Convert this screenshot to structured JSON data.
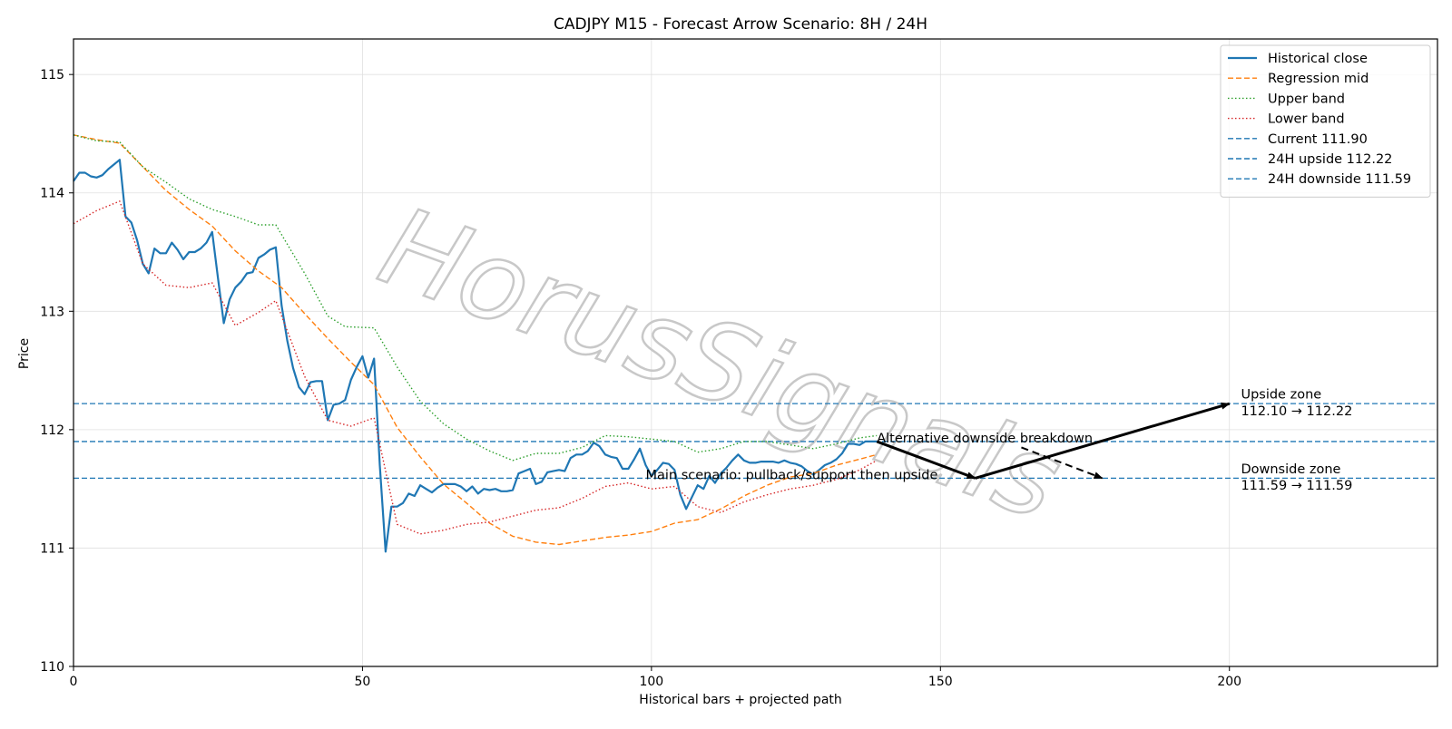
{
  "chart_data": {
    "type": "line",
    "title": "CADJPY M15 - Forecast Arrow Scenario: 8H / 24H",
    "xlabel": "Historical bars + projected path",
    "ylabel": "Price",
    "xlim": [
      0,
      236
    ],
    "ylim": [
      110,
      115.3
    ],
    "xticks": [
      0,
      50,
      100,
      150,
      200
    ],
    "yticks": [
      110,
      111,
      112,
      113,
      114,
      115
    ],
    "grid": true,
    "legend_position": "top-right",
    "watermark": "HorusSignals",
    "series": [
      {
        "name": "Historical close",
        "color": "#1f77b4",
        "style": "solid",
        "x": [
          0,
          1,
          2,
          3,
          4,
          5,
          6,
          7,
          8,
          9,
          10,
          11,
          12,
          13,
          14,
          15,
          16,
          17,
          18,
          19,
          20,
          21,
          22,
          23,
          24,
          25,
          26,
          27,
          28,
          29,
          30,
          31,
          32,
          33,
          34,
          35,
          36,
          37,
          38,
          39,
          40,
          41,
          42,
          43,
          44,
          45,
          46,
          47,
          48,
          49,
          50,
          51,
          52,
          53,
          54,
          55,
          56,
          57,
          58,
          59,
          60,
          61,
          62,
          63,
          64,
          65,
          66,
          67,
          68,
          69,
          70,
          71,
          72,
          73,
          74,
          75,
          76,
          77,
          78,
          79,
          80,
          81,
          82,
          83,
          84,
          85,
          86,
          87,
          88,
          89,
          90,
          91,
          92,
          93,
          94,
          95,
          96,
          97,
          98,
          99,
          100,
          101,
          102,
          103,
          104,
          105,
          106,
          107,
          108,
          109,
          110,
          111,
          112,
          113,
          114,
          115,
          116,
          117,
          118,
          119,
          120,
          121,
          122,
          123,
          124,
          125,
          126,
          127,
          128,
          129,
          130,
          131,
          132,
          133,
          134,
          135,
          136,
          137,
          138,
          139
        ],
        "y": [
          114.1,
          114.17,
          114.17,
          114.14,
          114.13,
          114.15,
          114.2,
          114.24,
          114.28,
          113.8,
          113.75,
          113.6,
          113.4,
          113.32,
          113.53,
          113.49,
          113.49,
          113.58,
          113.52,
          113.44,
          113.5,
          113.5,
          113.53,
          113.58,
          113.67,
          113.28,
          112.9,
          113.1,
          113.2,
          113.25,
          113.32,
          113.33,
          113.45,
          113.48,
          113.52,
          113.54,
          113.05,
          112.75,
          112.52,
          112.36,
          112.3,
          112.4,
          112.41,
          112.41,
          112.08,
          112.21,
          112.22,
          112.25,
          112.42,
          112.53,
          112.62,
          112.44,
          112.6,
          111.7,
          110.97,
          111.35,
          111.35,
          111.38,
          111.46,
          111.44,
          111.53,
          111.5,
          111.47,
          111.51,
          111.54,
          111.54,
          111.54,
          111.52,
          111.48,
          111.52,
          111.46,
          111.5,
          111.49,
          111.5,
          111.48,
          111.48,
          111.49,
          111.63,
          111.65,
          111.67,
          111.54,
          111.56,
          111.64,
          111.65,
          111.66,
          111.65,
          111.76,
          111.79,
          111.79,
          111.82,
          111.89,
          111.86,
          111.79,
          111.77,
          111.76,
          111.67,
          111.67,
          111.75,
          111.84,
          111.7,
          111.61,
          111.66,
          111.72,
          111.71,
          111.66,
          111.45,
          111.33,
          111.43,
          111.53,
          111.5,
          111.61,
          111.55,
          111.63,
          111.68,
          111.74,
          111.79,
          111.74,
          111.72,
          111.72,
          111.73,
          111.73,
          111.73,
          111.72,
          111.74,
          111.72,
          111.71,
          111.69,
          111.65,
          111.62,
          111.66,
          111.7,
          111.72,
          111.75,
          111.8,
          111.88,
          111.88,
          111.87,
          111.9,
          111.9,
          111.9
        ]
      },
      {
        "name": "Regression mid",
        "color": "#ff7f0e",
        "style": "dashed",
        "x": [
          0,
          4,
          8,
          12,
          16,
          20,
          24,
          28,
          32,
          36,
          40,
          44,
          48,
          52,
          56,
          60,
          64,
          68,
          72,
          76,
          80,
          84,
          88,
          92,
          96,
          100,
          104,
          108,
          112,
          116,
          120,
          124,
          128,
          132,
          136,
          139
        ],
        "y": [
          114.49,
          114.45,
          114.42,
          114.22,
          114.02,
          113.86,
          113.72,
          113.51,
          113.34,
          113.2,
          112.98,
          112.77,
          112.57,
          112.38,
          112.02,
          111.77,
          111.54,
          111.38,
          111.21,
          111.1,
          111.05,
          111.03,
          111.06,
          111.09,
          111.11,
          111.14,
          111.21,
          111.24,
          111.33,
          111.44,
          111.53,
          111.6,
          111.63,
          111.7,
          111.75,
          111.79
        ]
      },
      {
        "name": "Upper band",
        "color": "#2ca02c",
        "style": "dotted",
        "x": [
          0,
          4,
          8,
          12,
          16,
          20,
          24,
          28,
          32,
          35,
          40,
          44,
          47,
          52,
          56,
          60,
          64,
          68,
          72,
          76,
          80,
          84,
          88,
          92,
          96,
          100,
          104,
          108,
          112,
          116,
          120,
          124,
          128,
          132,
          136,
          139
        ],
        "y": [
          114.49,
          114.44,
          114.43,
          114.22,
          114.09,
          113.95,
          113.86,
          113.8,
          113.73,
          113.73,
          113.32,
          112.96,
          112.87,
          112.86,
          112.53,
          112.24,
          112.05,
          111.92,
          111.82,
          111.74,
          111.8,
          111.8,
          111.85,
          111.95,
          111.94,
          111.92,
          111.9,
          111.81,
          111.84,
          111.9,
          111.9,
          111.87,
          111.84,
          111.88,
          111.93,
          111.95
        ]
      },
      {
        "name": "Lower band",
        "color": "#d62728",
        "style": "dotted",
        "x": [
          0,
          4,
          8,
          12,
          16,
          20,
          24,
          28,
          32,
          35,
          40,
          44,
          48,
          52,
          56,
          60,
          64,
          68,
          72,
          76,
          80,
          84,
          88,
          92,
          96,
          100,
          104,
          108,
          112,
          116,
          120,
          124,
          128,
          132,
          136,
          139
        ],
        "y": [
          113.74,
          113.85,
          113.93,
          113.4,
          113.22,
          113.2,
          113.24,
          112.88,
          112.99,
          113.09,
          112.45,
          112.08,
          112.03,
          112.1,
          111.2,
          111.12,
          111.15,
          111.2,
          111.22,
          111.27,
          111.32,
          111.34,
          111.42,
          111.52,
          111.55,
          111.5,
          111.52,
          111.35,
          111.3,
          111.39,
          111.45,
          111.5,
          111.53,
          111.58,
          111.66,
          111.74
        ]
      }
    ],
    "hlines": [
      {
        "name": "Current 111.90",
        "y": 111.9,
        "color": "#1f77b4",
        "style": "dashed"
      },
      {
        "name": "24H upside 112.22",
        "y": 112.22,
        "color": "#1f77b4",
        "style": "dashed"
      },
      {
        "name": "24H downside 111.59",
        "y": 111.59,
        "color": "#1f77b4",
        "style": "dashed"
      }
    ],
    "arrows": [
      {
        "kind": "main",
        "style": "solid",
        "from": [
          139,
          111.9
        ],
        "to": [
          156,
          111.59
        ]
      },
      {
        "kind": "main",
        "style": "solid",
        "from": [
          156,
          111.59
        ],
        "to": [
          200,
          112.22
        ]
      },
      {
        "kind": "alternative",
        "style": "dashed",
        "from": [
          164,
          111.85
        ],
        "to": [
          178,
          111.59
        ]
      }
    ],
    "annotations": [
      {
        "text": "Alternative downside breakdown",
        "x": 139,
        "y": 111.93
      },
      {
        "text": "Main scenario: pullback/support then upside",
        "x": 99,
        "y": 111.62
      },
      {
        "text": "Upside zone",
        "x": 202,
        "y": 112.3
      },
      {
        "text": "112.10 → 112.22",
        "x": 202,
        "y": 112.16
      },
      {
        "text": "Downside zone",
        "x": 202,
        "y": 111.67
      },
      {
        "text": "111.59 → 111.59",
        "x": 202,
        "y": 111.53
      }
    ]
  }
}
